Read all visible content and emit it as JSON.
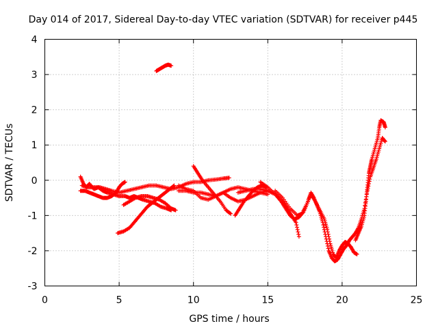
{
  "chart_data": {
    "type": "scatter",
    "title": "Day 014 of 2017, Sidereal Day-to-day VTEC variation (SDTVAR) for receiver p445",
    "xlabel": "GPS time / hours",
    "ylabel": "SDTVAR / TECUs",
    "xlim": [
      0,
      25
    ],
    "ylim": [
      -3,
      4
    ],
    "xticks": [
      0,
      5,
      10,
      15,
      20,
      25
    ],
    "yticks": [
      -3,
      -2,
      -1,
      0,
      1,
      2,
      3,
      4
    ],
    "grid": true,
    "marker": "+",
    "series": [
      {
        "name": "SDTVAR p445",
        "color": "#ff0000",
        "segments": [
          [
            [
              2.4,
              0.1
            ],
            [
              2.6,
              -0.1
            ],
            [
              2.8,
              -0.2
            ],
            [
              3.0,
              -0.1
            ],
            [
              3.3,
              -0.25
            ],
            [
              3.6,
              -0.2
            ],
            [
              3.9,
              -0.3
            ],
            [
              4.2,
              -0.35
            ],
            [
              4.6,
              -0.4
            ],
            [
              5.0,
              -0.45
            ],
            [
              5.4,
              -0.45
            ],
            [
              5.7,
              -0.5
            ],
            [
              6.0,
              -0.45
            ],
            [
              6.3,
              -0.5
            ],
            [
              6.6,
              -0.55
            ],
            [
              7.0,
              -0.6
            ],
            [
              7.4,
              -0.65
            ],
            [
              7.8,
              -0.75
            ],
            [
              8.2,
              -0.8
            ],
            [
              8.5,
              -0.85
            ]
          ],
          [
            [
              2.4,
              -0.3
            ],
            [
              2.7,
              -0.3
            ],
            [
              3.0,
              -0.35
            ],
            [
              3.3,
              -0.4
            ],
            [
              3.6,
              -0.45
            ],
            [
              3.9,
              -0.5
            ],
            [
              4.2,
              -0.5
            ],
            [
              4.5,
              -0.45
            ],
            [
              4.8,
              -0.35
            ],
            [
              5.0,
              -0.2
            ],
            [
              5.2,
              -0.1
            ],
            [
              5.4,
              -0.05
            ]
          ],
          [
            [
              2.5,
              -0.15
            ],
            [
              2.9,
              -0.2
            ],
            [
              3.3,
              -0.2
            ],
            [
              3.7,
              -0.2
            ],
            [
              4.1,
              -0.25
            ],
            [
              4.5,
              -0.3
            ],
            [
              5.0,
              -0.35
            ],
            [
              5.5,
              -0.3
            ],
            [
              6.0,
              -0.25
            ],
            [
              6.5,
              -0.2
            ],
            [
              7.0,
              -0.15
            ],
            [
              7.5,
              -0.15
            ],
            [
              8.0,
              -0.2
            ],
            [
              8.5,
              -0.25
            ],
            [
              9.0,
              -0.2
            ],
            [
              9.5,
              -0.1
            ],
            [
              10.0,
              -0.05
            ],
            [
              10.5,
              -0.05
            ],
            [
              11.0,
              0.0
            ],
            [
              11.5,
              0.02
            ],
            [
              12.0,
              0.05
            ],
            [
              12.4,
              0.07
            ]
          ],
          [
            [
              4.9,
              -1.5
            ],
            [
              5.3,
              -1.45
            ],
            [
              5.7,
              -1.35
            ],
            [
              6.0,
              -1.2
            ],
            [
              6.3,
              -1.05
            ],
            [
              6.6,
              -0.9
            ],
            [
              6.9,
              -0.75
            ],
            [
              7.2,
              -0.65
            ],
            [
              7.5,
              -0.55
            ],
            [
              7.8,
              -0.45
            ],
            [
              8.1,
              -0.35
            ],
            [
              8.4,
              -0.25
            ],
            [
              8.7,
              -0.15
            ]
          ],
          [
            [
              5.3,
              -0.7
            ],
            [
              5.7,
              -0.6
            ],
            [
              6.1,
              -0.5
            ],
            [
              6.5,
              -0.45
            ],
            [
              6.9,
              -0.45
            ],
            [
              7.3,
              -0.5
            ],
            [
              7.7,
              -0.55
            ],
            [
              8.1,
              -0.65
            ],
            [
              8.5,
              -0.8
            ],
            [
              8.8,
              -0.85
            ]
          ],
          [
            [
              7.5,
              3.1
            ],
            [
              7.7,
              3.15
            ],
            [
              7.9,
              3.2
            ],
            [
              8.1,
              3.25
            ],
            [
              8.3,
              3.28
            ],
            [
              8.5,
              3.25
            ]
          ],
          [
            [
              9.0,
              -0.3
            ],
            [
              9.5,
              -0.3
            ],
            [
              10.0,
              -0.35
            ],
            [
              10.5,
              -0.35
            ],
            [
              11.0,
              -0.4
            ],
            [
              11.5,
              -0.45
            ],
            [
              12.0,
              -0.35
            ],
            [
              12.5,
              -0.25
            ],
            [
              13.0,
              -0.2
            ],
            [
              13.5,
              -0.25
            ],
            [
              14.0,
              -0.3
            ],
            [
              14.5,
              -0.35
            ],
            [
              15.0,
              -0.4
            ]
          ],
          [
            [
              10.0,
              0.4
            ],
            [
              10.3,
              0.2
            ],
            [
              10.6,
              0.0
            ],
            [
              11.0,
              -0.2
            ],
            [
              11.4,
              -0.4
            ],
            [
              11.8,
              -0.6
            ],
            [
              12.2,
              -0.85
            ],
            [
              12.5,
              -0.95
            ]
          ],
          [
            [
              9.0,
              -0.15
            ],
            [
              9.5,
              -0.25
            ],
            [
              10.0,
              -0.3
            ],
            [
              10.5,
              -0.5
            ],
            [
              11.0,
              -0.55
            ],
            [
              11.5,
              -0.45
            ],
            [
              12.0,
              -0.35
            ],
            [
              12.5,
              -0.5
            ],
            [
              13.0,
              -0.6
            ],
            [
              13.5,
              -0.55
            ],
            [
              14.0,
              -0.45
            ],
            [
              14.5,
              -0.35
            ],
            [
              15.0,
              -0.3
            ]
          ],
          [
            [
              12.8,
              -1.0
            ],
            [
              13.1,
              -0.8
            ],
            [
              13.4,
              -0.6
            ],
            [
              13.7,
              -0.45
            ],
            [
              14.0,
              -0.3
            ],
            [
              14.3,
              -0.2
            ],
            [
              14.6,
              -0.15
            ],
            [
              14.9,
              -0.2
            ]
          ],
          [
            [
              13.0,
              -0.35
            ],
            [
              13.5,
              -0.3
            ],
            [
              14.0,
              -0.25
            ],
            [
              14.5,
              -0.25
            ],
            [
              15.0,
              -0.3
            ],
            [
              15.5,
              -0.4
            ],
            [
              16.0,
              -0.6
            ],
            [
              16.3,
              -0.8
            ],
            [
              16.6,
              -1.0
            ],
            [
              16.9,
              -1.2
            ],
            [
              17.1,
              -1.6
            ]
          ],
          [
            [
              14.5,
              -0.05
            ],
            [
              15.0,
              -0.2
            ],
            [
              15.5,
              -0.4
            ],
            [
              15.9,
              -0.6
            ],
            [
              16.2,
              -0.8
            ],
            [
              16.5,
              -1.0
            ],
            [
              16.8,
              -1.1
            ],
            [
              17.1,
              -1.05
            ],
            [
              17.4,
              -0.9
            ],
            [
              17.7,
              -0.6
            ],
            [
              17.9,
              -0.35
            ],
            [
              18.1,
              -0.5
            ],
            [
              18.3,
              -0.7
            ],
            [
              18.5,
              -0.9
            ],
            [
              18.7,
              -1.2
            ],
            [
              18.9,
              -1.6
            ],
            [
              19.1,
              -2.0
            ],
            [
              19.3,
              -2.2
            ],
            [
              19.5,
              -2.3
            ],
            [
              19.7,
              -2.25
            ],
            [
              19.9,
              -2.1
            ],
            [
              20.1,
              -1.95
            ],
            [
              20.3,
              -1.85
            ],
            [
              20.5,
              -1.7
            ],
            [
              20.7,
              -1.6
            ],
            [
              20.9,
              -1.5
            ],
            [
              21.1,
              -1.35
            ],
            [
              21.3,
              -1.1
            ],
            [
              21.5,
              -0.8
            ],
            [
              21.7,
              -0.3
            ],
            [
              21.9,
              0.1
            ],
            [
              22.1,
              0.35
            ],
            [
              22.3,
              0.6
            ],
            [
              22.5,
              0.9
            ],
            [
              22.7,
              1.2
            ],
            [
              22.9,
              1.1
            ]
          ],
          [
            [
              15.5,
              -0.3
            ],
            [
              16.0,
              -0.5
            ],
            [
              16.5,
              -0.8
            ],
            [
              17.0,
              -1.0
            ],
            [
              17.3,
              -0.95
            ],
            [
              17.6,
              -0.7
            ],
            [
              17.9,
              -0.4
            ],
            [
              18.2,
              -0.6
            ],
            [
              18.5,
              -0.85
            ],
            [
              18.8,
              -1.1
            ],
            [
              19.0,
              -1.4
            ],
            [
              19.2,
              -1.8
            ],
            [
              19.4,
              -2.1
            ],
            [
              19.6,
              -2.2
            ],
            [
              19.8,
              -2.0
            ],
            [
              20.0,
              -1.85
            ],
            [
              20.2,
              -1.75
            ],
            [
              20.4,
              -1.8
            ],
            [
              20.6,
              -1.9
            ],
            [
              20.8,
              -2.05
            ],
            [
              21.0,
              -2.1
            ]
          ],
          [
            [
              20.9,
              -1.7
            ],
            [
              21.1,
              -1.5
            ],
            [
              21.3,
              -1.3
            ],
            [
              21.5,
              -1.0
            ],
            [
              21.6,
              -0.6
            ],
            [
              21.7,
              -0.2
            ],
            [
              21.8,
              0.2
            ],
            [
              21.9,
              0.4
            ],
            [
              22.0,
              0.6
            ],
            [
              22.2,
              0.9
            ],
            [
              22.4,
              1.2
            ],
            [
              22.5,
              1.5
            ],
            [
              22.6,
              1.7
            ],
            [
              22.8,
              1.65
            ],
            [
              22.9,
              1.5
            ]
          ]
        ]
      }
    ]
  }
}
